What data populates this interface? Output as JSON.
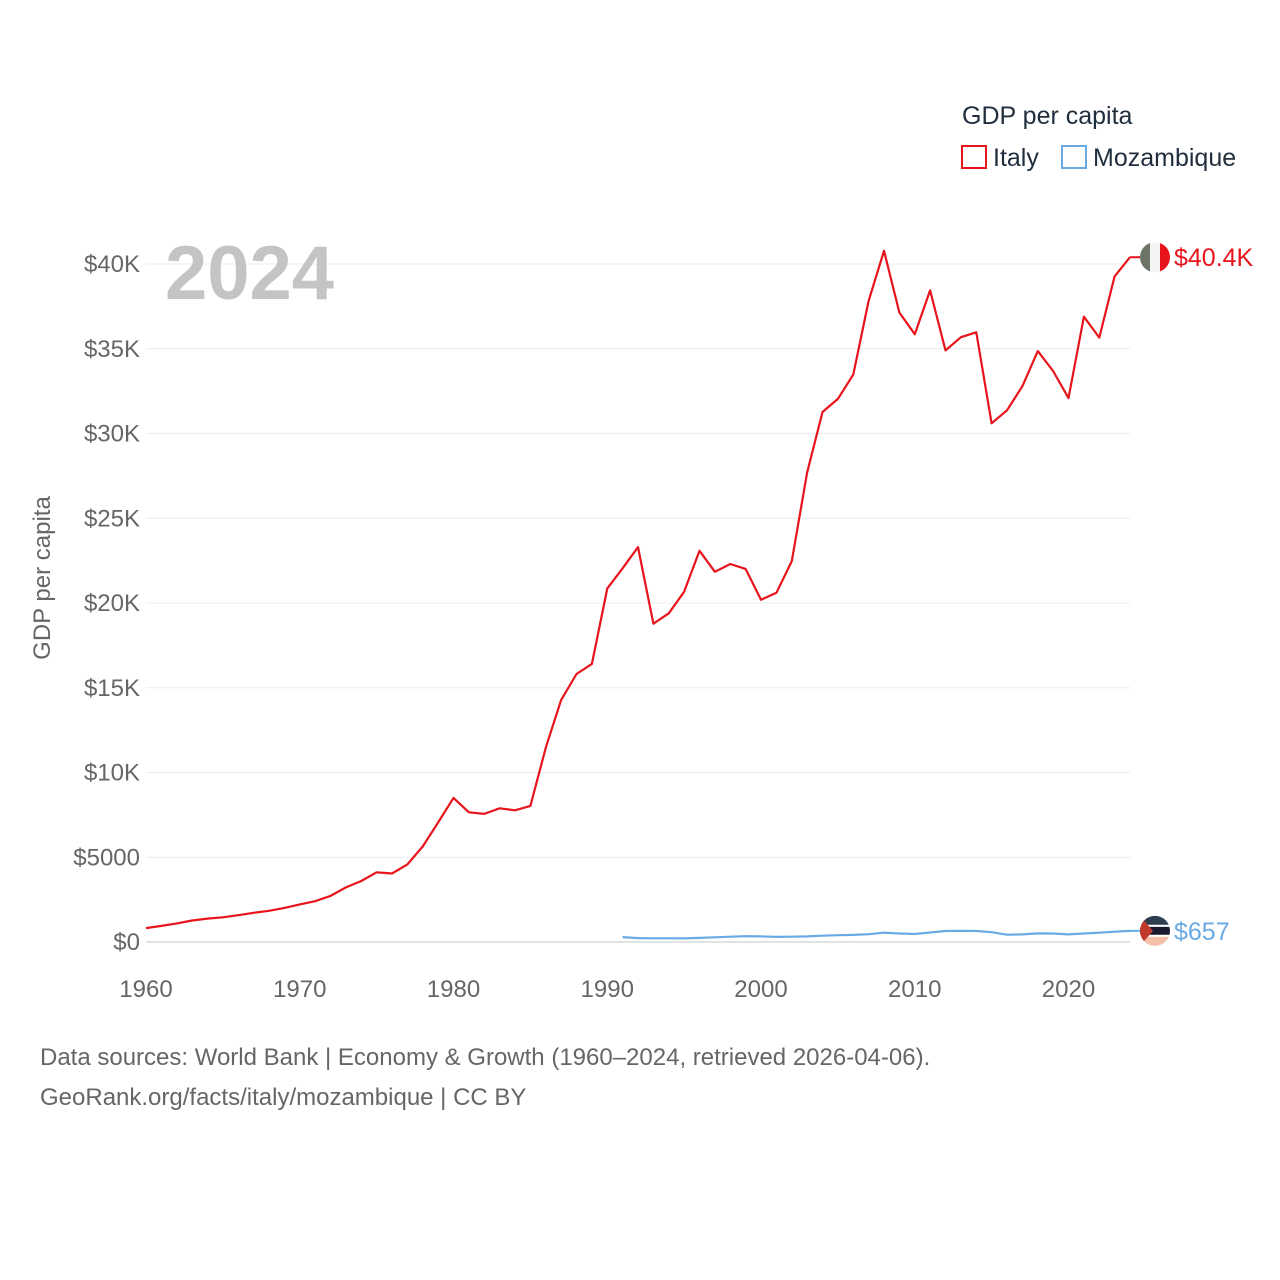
{
  "chart_data": {
    "type": "line",
    "title": "GDP per capita",
    "year_label": "2024",
    "ylabel": "GDP per capita",
    "xlabel": "",
    "xlim": [
      1960,
      2024
    ],
    "ylim": [
      0,
      41000
    ],
    "y_ticks": [
      {
        "value": 0,
        "label": "$0"
      },
      {
        "value": 5000,
        "label": "$5000"
      },
      {
        "value": 10000,
        "label": "$10K"
      },
      {
        "value": 15000,
        "label": "$15K"
      },
      {
        "value": 20000,
        "label": "$20K"
      },
      {
        "value": 25000,
        "label": "$25K"
      },
      {
        "value": 30000,
        "label": "$30K"
      },
      {
        "value": 35000,
        "label": "$35K"
      },
      {
        "value": 40000,
        "label": "$40K"
      }
    ],
    "x_ticks": [
      {
        "value": 1960,
        "label": "1960"
      },
      {
        "value": 1970,
        "label": "1970"
      },
      {
        "value": 1980,
        "label": "1980"
      },
      {
        "value": 1990,
        "label": "1990"
      },
      {
        "value": 2000,
        "label": "2000"
      },
      {
        "value": 2010,
        "label": "2010"
      },
      {
        "value": 2020,
        "label": "2020"
      }
    ],
    "legend": {
      "title": "GDP per capita",
      "position": "top-right"
    },
    "series": [
      {
        "name": "Italy",
        "color": "#e8141c",
        "end_label": "$40.4K",
        "flag": "italy-flag",
        "x": [
          1960,
          1961,
          1962,
          1963,
          1964,
          1965,
          1966,
          1967,
          1968,
          1969,
          1970,
          1971,
          1972,
          1973,
          1974,
          1975,
          1976,
          1977,
          1978,
          1979,
          1980,
          1981,
          1982,
          1983,
          1984,
          1985,
          1986,
          1987,
          1988,
          1989,
          1990,
          1991,
          1992,
          1993,
          1994,
          1995,
          1996,
          1997,
          1998,
          1999,
          2000,
          2001,
          2002,
          2003,
          2004,
          2005,
          2006,
          2007,
          2008,
          2009,
          2010,
          2011,
          2012,
          2013,
          2014,
          2015,
          2016,
          2017,
          2018,
          2019,
          2020,
          2021,
          2022,
          2023,
          2024
        ],
        "values": [
          820,
          950,
          1100,
          1270,
          1380,
          1460,
          1580,
          1720,
          1840,
          2010,
          2220,
          2410,
          2720,
          3220,
          3600,
          4110,
          4040,
          4580,
          5640,
          7050,
          8500,
          7650,
          7560,
          7890,
          7770,
          8030,
          11470,
          14270,
          15810,
          16410,
          20860,
          22050,
          23300,
          18780,
          19390,
          20660,
          23080,
          21840,
          22300,
          22010,
          20190,
          20600,
          22470,
          27690,
          31270,
          32040,
          33480,
          37820,
          40780,
          37130,
          35860,
          38440,
          34900,
          35680,
          35970,
          30600,
          31370,
          32790,
          34860,
          33690,
          32090,
          36890,
          35660,
          39270,
          40400
        ]
      },
      {
        "name": "Mozambique",
        "color": "#6aaae4",
        "end_label": "$657",
        "flag": "mozambique-flag",
        "x": [
          1991,
          1992,
          1993,
          1994,
          1995,
          1996,
          1997,
          1998,
          1999,
          2000,
          2001,
          2002,
          2003,
          2004,
          2005,
          2006,
          2007,
          2008,
          2009,
          2010,
          2011,
          2012,
          2013,
          2014,
          2015,
          2016,
          2017,
          2018,
          2019,
          2020,
          2021,
          2022,
          2023,
          2024
        ],
        "values": [
          290,
          230,
          220,
          220,
          210,
          240,
          280,
          310,
          340,
          330,
          300,
          310,
          330,
          370,
          400,
          420,
          460,
          550,
          500,
          470,
          560,
          650,
          660,
          650,
          580,
          430,
          450,
          510,
          500,
          450,
          500,
          550,
          610,
          657
        ]
      }
    ]
  },
  "footer": {
    "line1": "Data sources: World Bank | Economy & Growth (1960–2024, retrieved 2026-04-06).",
    "line2": "GeoRank.org/facts/italy/mozambique | CC BY"
  }
}
